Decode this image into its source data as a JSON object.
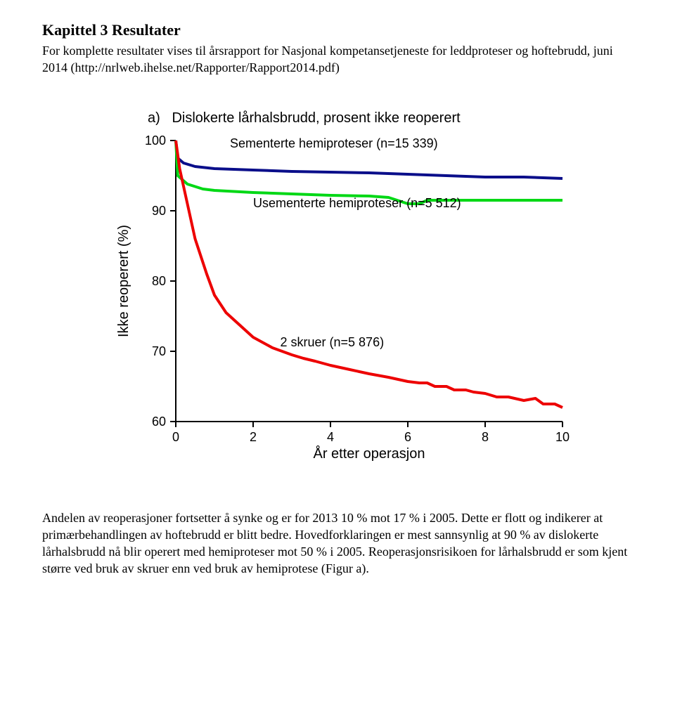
{
  "title": "Kapittel 3 Resultater",
  "intro": "For komplette resultater vises til årsrapport for Nasjonal kompetansetjeneste for leddproteser og hoftebrudd, juni 2014 (http://nrlweb.ihelse.net/Rapporter/Rapport2014.pdf)",
  "chart": {
    "type": "line",
    "title_prefix": "a)",
    "title": "Dislokerte lårhalsbrudd, prosent ikke reoperert",
    "ylabel": "Ikke reoperert (%)",
    "xlabel": "År etter operasjon",
    "xlim": [
      0,
      10
    ],
    "ylim": [
      60,
      100
    ],
    "xticks": [
      0,
      2,
      4,
      6,
      8,
      10
    ],
    "yticks": [
      60,
      70,
      80,
      90,
      100
    ],
    "title_fontsize": 20,
    "label_fontsize": 20,
    "tick_fontsize": 18,
    "line_width": 4,
    "background_color": "#ffffff",
    "axis_color": "#000000",
    "series": [
      {
        "name": "Sementerte hemiproteser (n=15 339)",
        "color": "#0a0e8a",
        "label_x": 1.4,
        "label_y": 99,
        "points": [
          [
            0.0,
            100.0
          ],
          [
            0.05,
            97.5
          ],
          [
            0.2,
            96.8
          ],
          [
            0.5,
            96.3
          ],
          [
            1.0,
            96.0
          ],
          [
            2.0,
            95.8
          ],
          [
            3.0,
            95.6
          ],
          [
            4.0,
            95.5
          ],
          [
            5.0,
            95.4
          ],
          [
            6.0,
            95.2
          ],
          [
            7.0,
            95.0
          ],
          [
            8.0,
            94.8
          ],
          [
            9.0,
            94.8
          ],
          [
            10.0,
            94.6
          ]
        ]
      },
      {
        "name": "Usementerte hemiproteser (n=5 512)",
        "color": "#00d815",
        "label_x": 2.0,
        "label_y": 90.5,
        "points": [
          [
            0.0,
            100.0
          ],
          [
            0.05,
            95.0
          ],
          [
            0.3,
            93.8
          ],
          [
            0.7,
            93.1
          ],
          [
            1.0,
            92.9
          ],
          [
            2.0,
            92.6
          ],
          [
            3.0,
            92.4
          ],
          [
            4.0,
            92.2
          ],
          [
            5.0,
            92.1
          ],
          [
            5.5,
            91.9
          ],
          [
            6.0,
            91.0
          ],
          [
            6.3,
            91.0
          ],
          [
            6.5,
            91.5
          ],
          [
            7.0,
            91.5
          ],
          [
            10.0,
            91.5
          ]
        ]
      },
      {
        "name": "2 skruer (n=5 876)",
        "color": "#ed0000",
        "label_x": 2.7,
        "label_y": 70.7,
        "points": [
          [
            0.0,
            100.0
          ],
          [
            0.1,
            96.0
          ],
          [
            0.3,
            91.0
          ],
          [
            0.5,
            86.0
          ],
          [
            0.8,
            81.0
          ],
          [
            1.0,
            78.0
          ],
          [
            1.3,
            75.5
          ],
          [
            1.7,
            73.5
          ],
          [
            2.0,
            72.0
          ],
          [
            2.5,
            70.5
          ],
          [
            3.0,
            69.5
          ],
          [
            3.3,
            69.0
          ],
          [
            3.6,
            68.6
          ],
          [
            4.0,
            68.0
          ],
          [
            4.5,
            67.4
          ],
          [
            5.0,
            66.8
          ],
          [
            5.5,
            66.3
          ],
          [
            6.0,
            65.7
          ],
          [
            6.3,
            65.5
          ],
          [
            6.5,
            65.5
          ],
          [
            6.7,
            65.0
          ],
          [
            7.0,
            65.0
          ],
          [
            7.2,
            64.5
          ],
          [
            7.5,
            64.5
          ],
          [
            7.7,
            64.2
          ],
          [
            8.0,
            64.0
          ],
          [
            8.3,
            63.5
          ],
          [
            8.6,
            63.5
          ],
          [
            9.0,
            63.0
          ],
          [
            9.3,
            63.3
          ],
          [
            9.5,
            62.5
          ],
          [
            9.8,
            62.5
          ],
          [
            10.0,
            62.0
          ]
        ]
      }
    ]
  },
  "body": "Andelen av reoperasjoner fortsetter å synke og er for 2013 10 % mot 17 % i 2005. Dette er flott og indikerer at primærbehandlingen av hoftebrudd er blitt bedre. Hovedforklaringen er mest sannsynlig at 90 % av dislokerte lårhalsbrudd nå blir operert med hemiproteser mot 50 % i 2005. Reoperasjonsrisikoen for lårhalsbrudd er som kjent større ved bruk av skruer enn ved bruk av hemiprotese (Figur a)."
}
